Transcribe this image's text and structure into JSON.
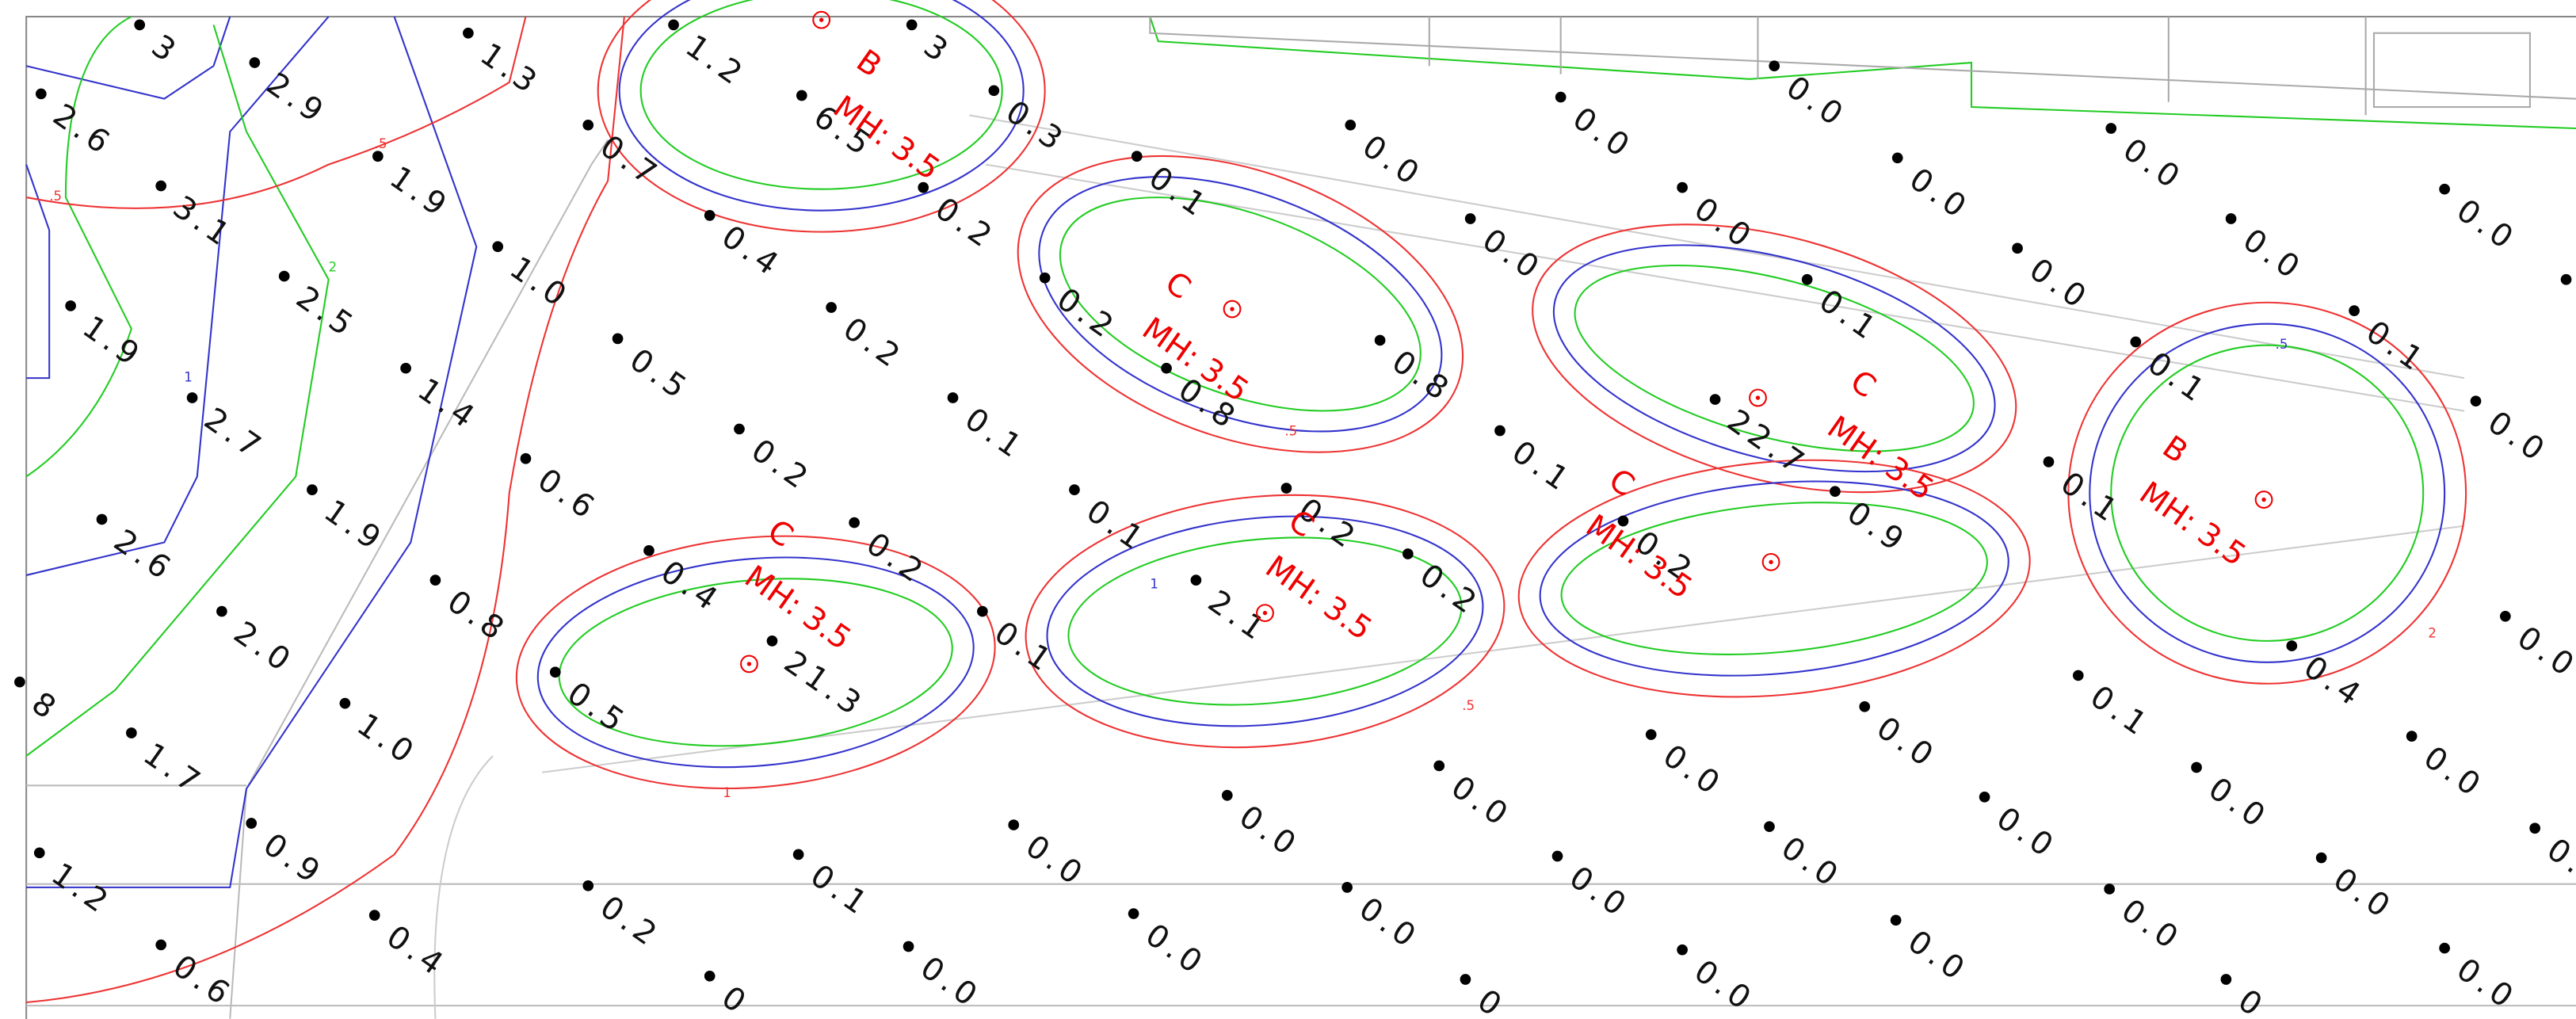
{
  "readings": [
    "3",
    "2.9",
    "2.6",
    "1.3",
    "0.7",
    "1.9",
    "3.1",
    "1.0",
    "2.5",
    "1.9",
    "0.4",
    "6.5",
    "0.2",
    "0.2",
    "0.5",
    "1.4",
    "2.7",
    "0.2",
    "0.1",
    "0.6",
    "1.9",
    "2.6",
    "0.4",
    "0.2",
    "0.8",
    "2.0",
    "8",
    "0.5",
    "21.3",
    "0.1",
    "1.0",
    "1.7",
    "0.9",
    "1.2",
    "0.4",
    "0.6",
    "0.2",
    "0.1",
    "0",
    "0.0",
    "0.0",
    "0.0",
    "0.0",
    "0.0",
    "0.0",
    "0.0",
    "0",
    "0.0",
    "0.0",
    "0.0",
    "0.0",
    "0.0",
    "0.0",
    "0.1",
    "0.0",
    "0.0",
    "0.4",
    "0.0",
    "0",
    "0.0",
    "0.0",
    "0.0",
    "0.0",
    "0.1",
    "0.1",
    "0.0",
    "0.",
    "0.0",
    "0.0",
    "0.0",
    "0.0",
    "0.0",
    "0.0",
    "0.0",
    "0.0",
    "0.0",
    "0.0",
    "0.1",
    "0.2",
    "0.8",
    "0.8",
    "0.1",
    "0.1",
    "0.2",
    "0.2",
    "2.1",
    "0.2",
    "0.9",
    "22.7",
    "0.1",
    "0.1",
    "3",
    "0.3",
    "1.2"
  ],
  "fixtures": [
    {
      "type": "B",
      "label": "MH: 3.5"
    },
    {
      "type": "C",
      "label": "MH: 3.5"
    },
    {
      "type": "C",
      "label": "MH: 3.5"
    },
    {
      "type": "C",
      "label": "MH: 3.5"
    },
    {
      "type": "C",
      "label": "MH: 3.5"
    },
    {
      "type": "C",
      "label": "MH: 3.5"
    },
    {
      "type": "B",
      "label": "MH: 3.5"
    }
  ],
  "contour_labels": [
    ".5",
    "1",
    "2",
    ".5",
    "1",
    "2",
    ".5",
    ".5",
    "1",
    ".5"
  ]
}
